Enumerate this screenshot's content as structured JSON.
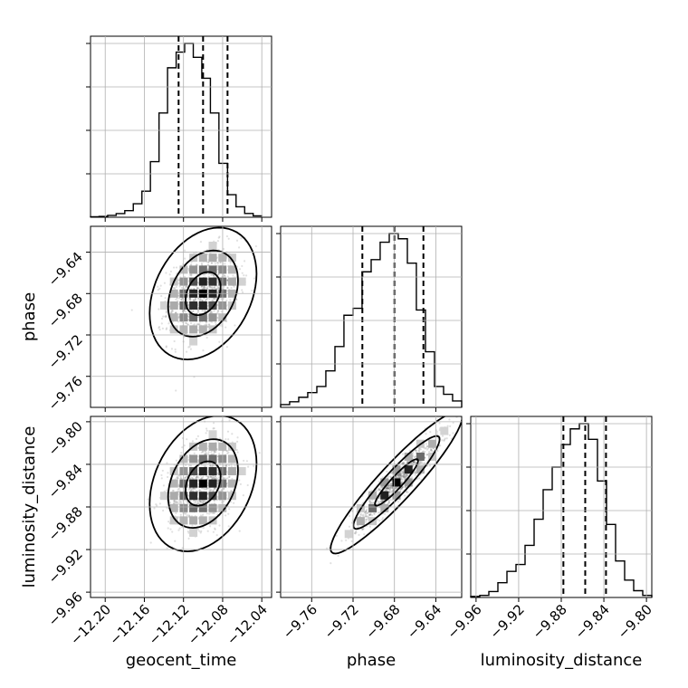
{
  "chart_data": {
    "type": "corner",
    "parameters": [
      "geocent_time",
      "phase",
      "luminosity_distance"
    ],
    "axis_labels": {
      "x": [
        "geocent_time",
        "phase",
        "luminosity_distance"
      ],
      "y": [
        "",
        "phase",
        "luminosity_distance"
      ]
    },
    "ranges": {
      "geocent_time": [
        -12.215,
        -12.03
      ],
      "phase": [
        -9.79,
        -9.615
      ],
      "luminosity_distance": [
        -9.965,
        -9.795
      ]
    },
    "ticks": {
      "geocent_time": [
        -12.2,
        -12.16,
        -12.12,
        -12.08,
        -12.04
      ],
      "phase": [
        -9.76,
        -9.72,
        -9.68,
        -9.64
      ],
      "luminosity_distance": [
        -9.96,
        -9.92,
        -9.88,
        -9.84,
        -9.8
      ]
    },
    "tick_labels": {
      "geocent_time": [
        "−12.20",
        "−12.16",
        "−12.12",
        "−12.08",
        "−12.04"
      ],
      "phase": [
        "−9.76",
        "−9.72",
        "−9.68",
        "−9.64"
      ],
      "luminosity_distance": [
        "−9.96",
        "−9.92",
        "−9.88",
        "−9.84",
        "−9.80"
      ]
    },
    "histograms": {
      "geocent_time": {
        "bins": [
          -12.215,
          -12.2063,
          -12.1975,
          -12.1888,
          -12.18,
          -12.1713,
          -12.1625,
          -12.1538,
          -12.145,
          -12.1363,
          -12.1275,
          -12.1188,
          -12.11,
          -12.1013,
          -12.0925,
          -12.0838,
          -12.075,
          -12.0663,
          -12.0575,
          -12.0488,
          -12.04
        ],
        "counts": [
          0.003,
          0.005,
          0.011,
          0.021,
          0.038,
          0.078,
          0.15,
          0.32,
          0.6,
          0.86,
          0.95,
          1.0,
          0.92,
          0.8,
          0.6,
          0.31,
          0.13,
          0.06,
          0.022,
          0.008
        ],
        "quantiles": [
          -12.125,
          -12.1,
          -12.075
        ]
      },
      "phase": {
        "bins": [
          -9.79,
          -9.7813,
          -9.7725,
          -9.7638,
          -9.755,
          -9.7463,
          -9.7375,
          -9.7288,
          -9.72,
          -9.7113,
          -9.7025,
          -9.6938,
          -9.685,
          -9.6763,
          -9.6675,
          -9.6588,
          -9.65,
          -9.6413,
          -9.6325,
          -9.6238,
          -9.615
        ],
        "counts": [
          0.016,
          0.032,
          0.058,
          0.085,
          0.12,
          0.21,
          0.35,
          0.53,
          0.57,
          0.78,
          0.85,
          0.95,
          1.0,
          0.97,
          0.83,
          0.56,
          0.32,
          0.12,
          0.075,
          0.037
        ],
        "quantiles": [
          -9.711,
          -9.68,
          -9.652
        ]
      },
      "luminosity_distance": {
        "bins": [
          -9.965,
          -9.9565,
          -9.948,
          -9.9395,
          -9.931,
          -9.9225,
          -9.914,
          -9.9055,
          -9.897,
          -9.8885,
          -9.88,
          -9.8715,
          -9.863,
          -9.8545,
          -9.846,
          -9.8375,
          -9.829,
          -9.8205,
          -9.812,
          -9.8035,
          -9.795
        ],
        "counts": [
          0.006,
          0.012,
          0.034,
          0.085,
          0.15,
          0.19,
          0.3,
          0.45,
          0.62,
          0.75,
          0.88,
          0.97,
          1.0,
          0.91,
          0.67,
          0.42,
          0.21,
          0.1,
          0.039,
          0.012
        ],
        "quantiles": [
          -9.878,
          -9.8575,
          -9.838
        ]
      }
    },
    "pairs": [
      {
        "x": "geocent_time",
        "y": "phase",
        "mean": [
          -12.1,
          -9.68
        ],
        "std": [
          0.018,
          0.021
        ],
        "correlation": 0.3
      },
      {
        "x": "geocent_time",
        "y": "luminosity_distance",
        "mean": [
          -12.1,
          -9.858
        ],
        "std": [
          0.018,
          0.021
        ],
        "correlation": 0.3
      },
      {
        "x": "phase",
        "y": "luminosity_distance",
        "mean": [
          -9.678,
          -9.857
        ],
        "std": [
          0.021,
          0.022
        ],
        "correlation": 0.93
      }
    ],
    "contour_levels": [
      0.39,
      0.86,
      0.99
    ],
    "grid": true
  }
}
